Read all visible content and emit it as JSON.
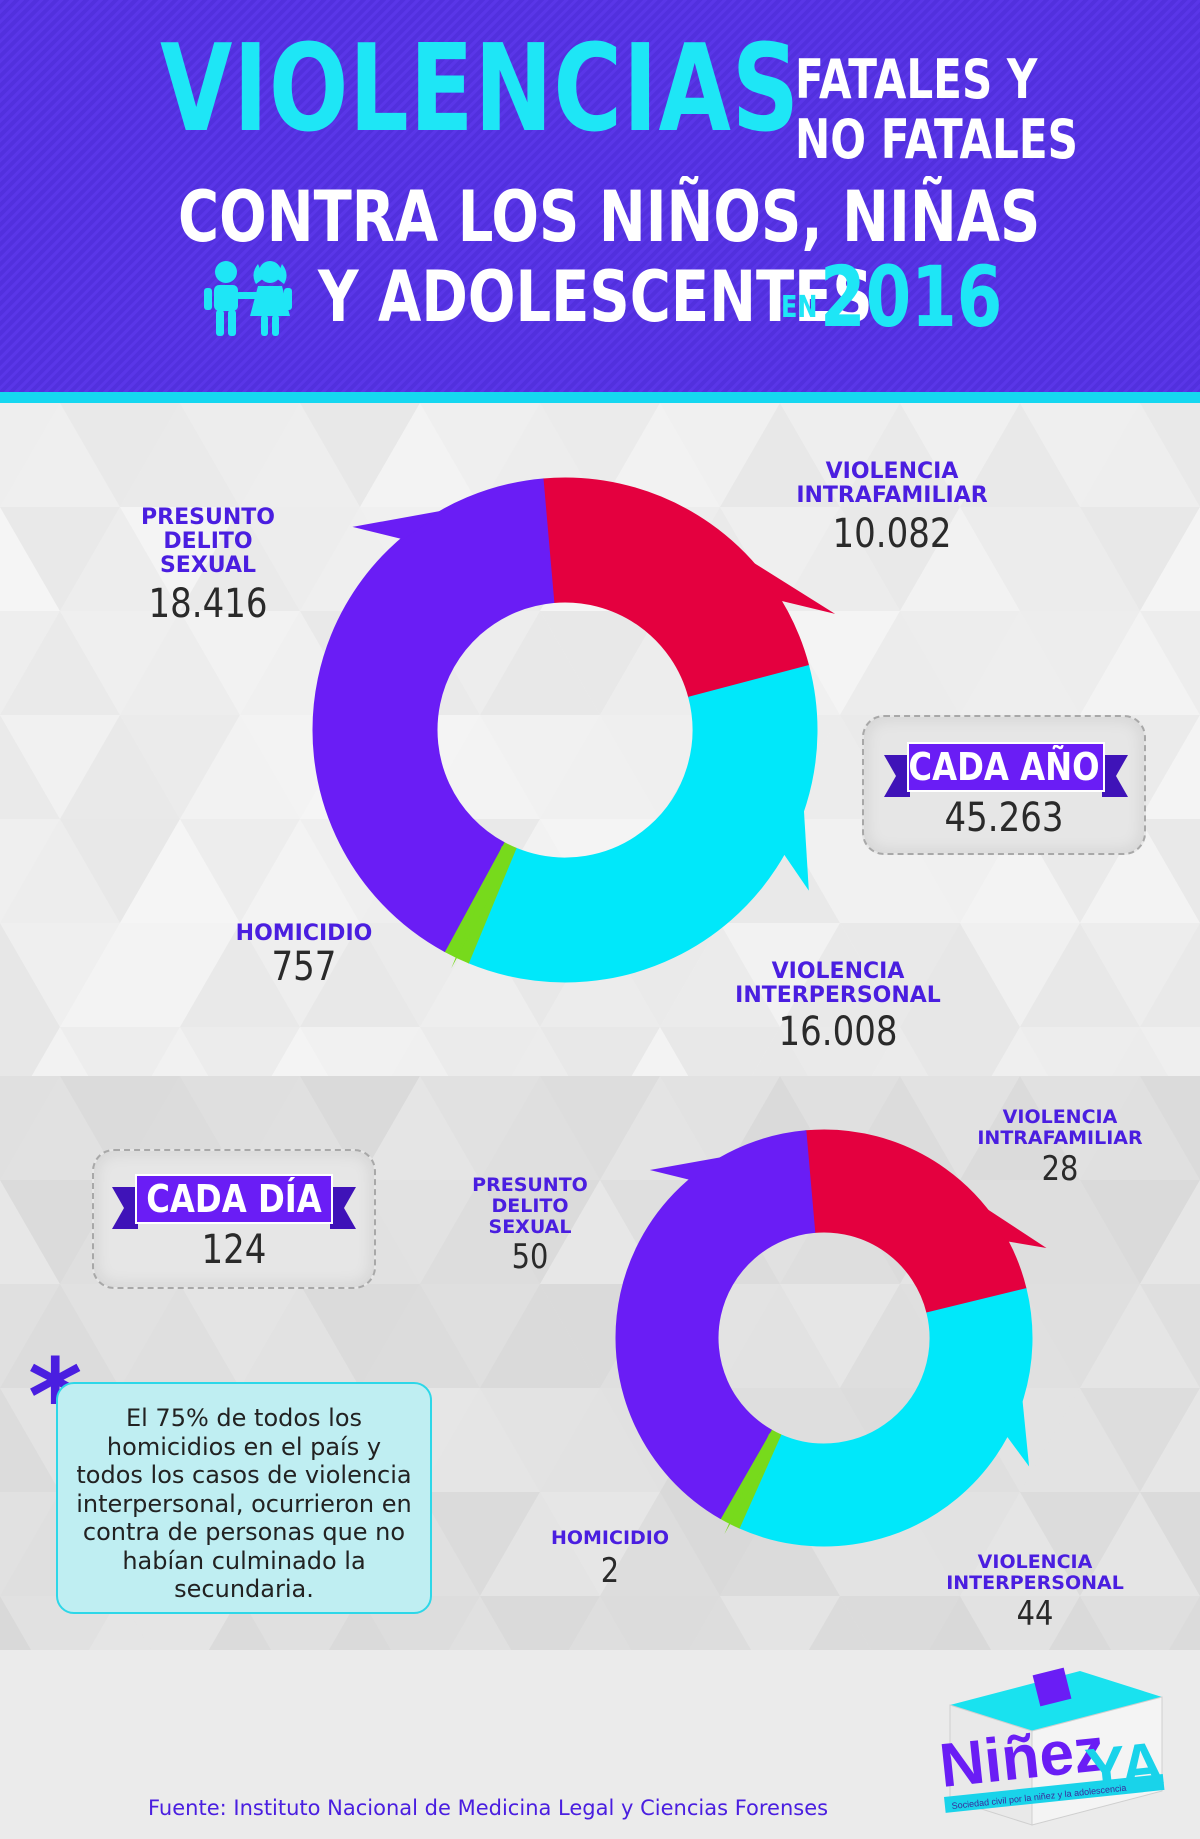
{
  "header": {
    "title_big": "VIOLENCIAS",
    "title_side_1": "FATALES Y",
    "title_side_2": "NO FATALES",
    "line2": "CONTRA LOS NIÑOS, NIÑAS",
    "line3": "Y ADOLESCENTES",
    "en": "EN",
    "year": "2016"
  },
  "annual": {
    "total_label": "CADA AÑO",
    "total_value": "45.263",
    "labels": {
      "presunto": [
        "PRESUNTO",
        "DELITO",
        "SEXUAL"
      ],
      "intrafamiliar": [
        "VIOLENCIA",
        "INTRAFAMILIAR"
      ],
      "homicidio": [
        "HOMICIDIO"
      ],
      "interpersonal": [
        "VIOLENCIA",
        "INTERPERSONAL"
      ]
    },
    "values": {
      "presunto": "18.416",
      "intrafamiliar": "10.082",
      "homicidio": "757",
      "interpersonal": "16.008"
    }
  },
  "daily": {
    "total_label": "CADA DÍA",
    "total_value": "124",
    "labels": {
      "presunto": [
        "PRESUNTO",
        "DELITO",
        "SEXUAL"
      ],
      "intrafamiliar": [
        "VIOLENCIA",
        "INTRAFAMILIAR"
      ],
      "homicidio": [
        "HOMICIDIO"
      ],
      "interpersonal": [
        "VIOLENCIA",
        "INTERPERSONAL"
      ]
    },
    "values": {
      "presunto": "50",
      "intrafamiliar": "28",
      "homicidio": "2",
      "interpersonal": "44"
    }
  },
  "note": {
    "asterisk": "*",
    "text": "El 75% de todos los homicidios en el país y todos los casos de violencia interpersonal, ocurrieron en contra de personas que no habían culminado la secundaria."
  },
  "source": "Fuente: Instituto Nacional de Medicina Legal y Ciencias Forenses",
  "logo": {
    "text": "NiñezYA",
    "tagline": "Sociedad civil por la niñez y la adolescencia"
  },
  "colors": {
    "presunto": "#6a1df5",
    "intrafamiliar": "#e4003f",
    "interpersonal": "#00e8fa",
    "homicidio": "#77da1c",
    "header": "#5530e0",
    "accent": "#1ee6f6",
    "label": "#4a1ee0"
  },
  "chart_data": [
    {
      "type": "pie",
      "title": "CADA AÑO",
      "categories": [
        "PRESUNTO DELITO SEXUAL",
        "VIOLENCIA INTRAFAMILIAR",
        "VIOLENCIA INTERPERSONAL",
        "HOMICIDIO"
      ],
      "values": [
        18416,
        10082,
        16008,
        757
      ],
      "total": 45263
    },
    {
      "type": "pie",
      "title": "CADA DÍA",
      "categories": [
        "PRESUNTO DELITO SEXUAL",
        "VIOLENCIA INTRAFAMILIAR",
        "VIOLENCIA INTERPERSONAL",
        "HOMICIDIO"
      ],
      "values": [
        50,
        28,
        44,
        2
      ],
      "total": 124
    }
  ]
}
